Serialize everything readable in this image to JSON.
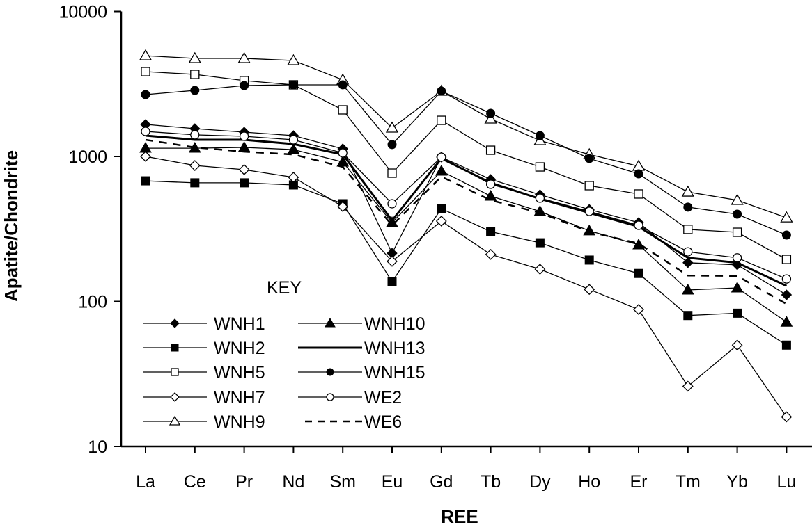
{
  "chart_data": {
    "type": "line",
    "title": "",
    "xlabel": "REE",
    "ylabel": "Apatite/Chondrite",
    "yscale": "log",
    "ylim": [
      10,
      10000
    ],
    "yticks": [
      10,
      100,
      1000,
      10000
    ],
    "ytick_labels": [
      "10",
      "100",
      "1000",
      "10000"
    ],
    "grid": false,
    "legend_title": "KEY",
    "legend_position": "lower-left inside plot",
    "categories": [
      "La",
      "Ce",
      "Pr",
      "Nd",
      "Sm",
      "Eu",
      "Gd",
      "Tb",
      "Dy",
      "Ho",
      "Er",
      "Tm",
      "Yb",
      "Lu"
    ],
    "series": [
      {
        "name": "WNH1",
        "marker": "diamond-filled",
        "line": "solid",
        "values": [
          1663,
          1556,
          1472,
          1393,
          1129,
          215,
          989,
          695,
          545,
          431,
          350,
          185,
          179,
          111
        ]
      },
      {
        "name": "WNH2",
        "marker": "square-filled",
        "line": "solid",
        "values": [
          679,
          658,
          658,
          636,
          472,
          137,
          437,
          303,
          254,
          193,
          156,
          80,
          83,
          50
        ]
      },
      {
        "name": "WNH5",
        "marker": "square-open",
        "line": "solid",
        "values": [
          3846,
          3680,
          3335,
          3120,
          2096,
          767,
          1775,
          1104,
          847,
          629,
          551,
          314,
          300,
          195
        ]
      },
      {
        "name": "WNH7",
        "marker": "diamond-open",
        "line": "solid",
        "values": [
          1000,
          866,
          811,
          718,
          451,
          189,
          358,
          211,
          167,
          121,
          88,
          26,
          50,
          16
        ]
      },
      {
        "name": "WNH9",
        "marker": "triangle-open",
        "line": "solid",
        "values": [
          4955,
          4745,
          4745,
          4590,
          3375,
          1573,
          2825,
          1815,
          1288,
          1033,
          857,
          569,
          499,
          378
        ]
      },
      {
        "name": "WNH10",
        "marker": "triangle-filled",
        "line": "solid",
        "values": [
          1141,
          1141,
          1154,
          1116,
          915,
          350,
          793,
          533,
          418,
          307,
          246,
          120,
          124,
          72
        ]
      },
      {
        "name": "WNH13",
        "marker": "none",
        "line": "thick",
        "values": [
          1393,
          1304,
          1304,
          1219,
          1033,
          362,
          968,
          658,
          510,
          409,
          328,
          200,
          185,
          128
        ]
      },
      {
        "name": "WNH15",
        "marker": "circle-filled",
        "line": "solid",
        "values": [
          2673,
          2856,
          3085,
          3120,
          3120,
          1208,
          2825,
          1983,
          1393,
          968,
          759,
          447,
          400,
          287
        ]
      },
      {
        "name": "WE2",
        "marker": "circle-open",
        "line": "solid",
        "values": [
          1489,
          1410,
          1378,
          1304,
          1057,
          472,
          989,
          643,
          516,
          418,
          335,
          220,
          200,
          143
        ]
      },
      {
        "name": "WE6",
        "marker": "none",
        "line": "dashed",
        "values": [
          1304,
          1154,
          1079,
          1033,
          847,
          335,
          726,
          499,
          409,
          303,
          251,
          151,
          150,
          96
        ]
      }
    ]
  },
  "legend": {
    "title": "KEY",
    "left_column": [
      "WNH1",
      "WNH2",
      "WNH5",
      "WNH7",
      "WNH9"
    ],
    "right_column": [
      "WNH10",
      "WNH13",
      "WNH15",
      "WE2",
      "WE6"
    ]
  },
  "colors": {
    "line": "#000000",
    "background": "#ffffff"
  }
}
